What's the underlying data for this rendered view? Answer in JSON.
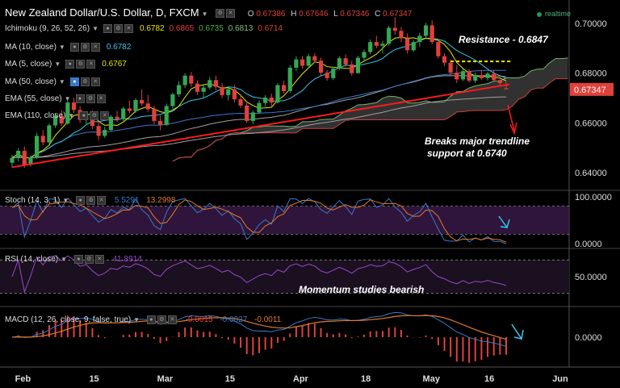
{
  "header": {
    "title": "New Zealand Dollar/U.S. Dollar, D, FXCM",
    "o_label": "O",
    "o": "0.67386",
    "h_label": "H",
    "h": "0.67646",
    "l_label": "L",
    "l": "0.67346",
    "c_label": "C",
    "c": "0.67347",
    "realtime": "realtime"
  },
  "indicators": [
    {
      "label": "Ichimoku (9, 26, 52, 26)",
      "values": [
        "0.6782",
        "0.6865",
        "0.6735",
        "0.6813",
        "0.6714"
      ],
      "colors": [
        "#e6e600",
        "#e0413c",
        "#4caf50",
        "#7fbf7f",
        "#e0413c"
      ]
    },
    {
      "label": "MA (10, close)",
      "values": [
        "0.6782"
      ],
      "colors": [
        "#38c6e8"
      ]
    },
    {
      "label": "MA (5, close)",
      "values": [
        "0.6767"
      ],
      "colors": [
        "#e6e600"
      ]
    },
    {
      "label": "MA (50, close)",
      "values": [],
      "colors": []
    },
    {
      "label": "EMA (55, close)",
      "values": [],
      "colors": []
    },
    {
      "label": "EMA (110, close)",
      "values": [],
      "colors": []
    }
  ],
  "panels": {
    "stoch": {
      "label": "Stoch (14, 3, 1)",
      "values": [
        "5.5291",
        "13.2998"
      ],
      "colors": [
        "#3a78c9",
        "#e07a28"
      ],
      "ticks": [
        "100.0000",
        "0.0000"
      ]
    },
    "rsi": {
      "label": "RSI (14, close)",
      "values": [
        "41.8914"
      ],
      "colors": [
        "#9b48c9"
      ],
      "ticks": [
        "50.0000"
      ]
    },
    "macd": {
      "label": "MACD (12, 26, close, 9, false, true)",
      "values": [
        "-0.0015",
        "-0.0027",
        "-0.0011"
      ],
      "colors": [
        "#e0413c",
        "#3a78c9",
        "#e07a28"
      ],
      "ticks": [
        "0.0000"
      ]
    }
  },
  "annotations": {
    "resistance": "Resistance - 0.6847",
    "breaks_line1": "Breaks major trendline",
    "breaks_line2": "support at 0.6740",
    "momentum": "Momentum studies bearish"
  },
  "chart_data": {
    "type": "candlestick",
    "price_axis": {
      "ticks": [
        "0.70000",
        "0.68000",
        "0.66000",
        "0.64000"
      ],
      "ylim": [
        0.6355,
        0.7055
      ],
      "last_price": "0.67347"
    },
    "x_labels": [
      "Feb",
      "15",
      "Mar",
      "15",
      "Apr",
      "18",
      "May",
      "16",
      "Jun"
    ],
    "resistance_level": 0.6847,
    "trendline": {
      "from": [
        0,
        0.6422
      ],
      "to": [
        80,
        0.6755
      ]
    },
    "candles": [
      [
        0.644,
        0.6472,
        0.642,
        0.646
      ],
      [
        0.646,
        0.6498,
        0.6445,
        0.6488
      ],
      [
        0.6488,
        0.6505,
        0.642,
        0.6432
      ],
      [
        0.6432,
        0.647,
        0.6425,
        0.6462
      ],
      [
        0.6462,
        0.656,
        0.6455,
        0.6548
      ],
      [
        0.6548,
        0.6572,
        0.651,
        0.6522
      ],
      [
        0.6522,
        0.6598,
        0.6515,
        0.659
      ],
      [
        0.659,
        0.664,
        0.658,
        0.6628
      ],
      [
        0.6628,
        0.6652,
        0.6588,
        0.6598
      ],
      [
        0.6598,
        0.669,
        0.6592,
        0.6682
      ],
      [
        0.6682,
        0.67,
        0.664,
        0.6652
      ],
      [
        0.6652,
        0.6668,
        0.66,
        0.6612
      ],
      [
        0.6612,
        0.6645,
        0.659,
        0.6632
      ],
      [
        0.6632,
        0.665,
        0.6575,
        0.6588
      ],
      [
        0.6588,
        0.6612,
        0.653,
        0.6548
      ],
      [
        0.6548,
        0.6585,
        0.654,
        0.6572
      ],
      [
        0.6572,
        0.6632,
        0.6565,
        0.6625
      ],
      [
        0.6625,
        0.6648,
        0.6605,
        0.6615
      ],
      [
        0.6615,
        0.6665,
        0.6608,
        0.6658
      ],
      [
        0.6658,
        0.669,
        0.6638,
        0.6648
      ],
      [
        0.6648,
        0.67,
        0.664,
        0.6692
      ],
      [
        0.6692,
        0.6735,
        0.6668,
        0.6678
      ],
      [
        0.6678,
        0.6712,
        0.6645,
        0.6655
      ],
      [
        0.6655,
        0.6668,
        0.6595,
        0.6608
      ],
      [
        0.6608,
        0.663,
        0.657,
        0.6592
      ],
      [
        0.6592,
        0.6678,
        0.6588,
        0.6668
      ],
      [
        0.6668,
        0.6722,
        0.6658,
        0.6715
      ],
      [
        0.6715,
        0.6768,
        0.6705,
        0.6752
      ],
      [
        0.6752,
        0.68,
        0.674,
        0.679
      ],
      [
        0.679,
        0.6805,
        0.6745,
        0.6758
      ],
      [
        0.6758,
        0.6772,
        0.6712,
        0.6725
      ],
      [
        0.6725,
        0.6752,
        0.6698,
        0.6742
      ],
      [
        0.6742,
        0.6785,
        0.6735,
        0.6772
      ],
      [
        0.6772,
        0.679,
        0.6732,
        0.6745
      ],
      [
        0.6745,
        0.676,
        0.67,
        0.6712
      ],
      [
        0.6712,
        0.6742,
        0.669,
        0.6735
      ],
      [
        0.6735,
        0.6752,
        0.6682,
        0.6695
      ],
      [
        0.6695,
        0.6712,
        0.666,
        0.667
      ],
      [
        0.667,
        0.669,
        0.66,
        0.6608
      ],
      [
        0.6608,
        0.665,
        0.6595,
        0.6642
      ],
      [
        0.6642,
        0.669,
        0.6635,
        0.668
      ],
      [
        0.668,
        0.6712,
        0.6665,
        0.6702
      ],
      [
        0.6702,
        0.6718,
        0.6668,
        0.6682
      ],
      [
        0.6682,
        0.676,
        0.6678,
        0.6752
      ],
      [
        0.6752,
        0.677,
        0.6718,
        0.6728
      ],
      [
        0.6728,
        0.6832,
        0.6722,
        0.6822
      ],
      [
        0.6822,
        0.6868,
        0.6808,
        0.6855
      ],
      [
        0.6855,
        0.687,
        0.6818,
        0.683
      ],
      [
        0.683,
        0.6878,
        0.6826,
        0.6868
      ],
      [
        0.6868,
        0.688,
        0.6842,
        0.685
      ],
      [
        0.685,
        0.6862,
        0.679,
        0.6802
      ],
      [
        0.6802,
        0.6812,
        0.677,
        0.678
      ],
      [
        0.678,
        0.6825,
        0.6772,
        0.6818
      ],
      [
        0.6818,
        0.6868,
        0.6812,
        0.686
      ],
      [
        0.686,
        0.6875,
        0.6826,
        0.6835
      ],
      [
        0.6835,
        0.685,
        0.679,
        0.68
      ],
      [
        0.68,
        0.687,
        0.6798,
        0.6862
      ],
      [
        0.6862,
        0.6895,
        0.6848,
        0.6885
      ],
      [
        0.6885,
        0.6935,
        0.6875,
        0.6925
      ],
      [
        0.6925,
        0.695,
        0.69,
        0.691
      ],
      [
        0.691,
        0.693,
        0.6878,
        0.6918
      ],
      [
        0.6918,
        0.699,
        0.691,
        0.6982
      ],
      [
        0.6982,
        0.7025,
        0.6955,
        0.697
      ],
      [
        0.697,
        0.6985,
        0.6925,
        0.694
      ],
      [
        0.694,
        0.696,
        0.6878,
        0.6892
      ],
      [
        0.6892,
        0.6935,
        0.6885,
        0.6925
      ],
      [
        0.6925,
        0.6962,
        0.6905,
        0.695
      ],
      [
        0.695,
        0.7002,
        0.694,
        0.6992
      ],
      [
        0.6992,
        0.7012,
        0.6915,
        0.6925
      ],
      [
        0.6925,
        0.694,
        0.6858,
        0.6868
      ],
      [
        0.6868,
        0.688,
        0.6828,
        0.6842
      ],
      [
        0.6842,
        0.6855,
        0.679,
        0.6802
      ],
      [
        0.6802,
        0.6832,
        0.676,
        0.6775
      ],
      [
        0.6775,
        0.6818,
        0.6768,
        0.6808
      ],
      [
        0.6808,
        0.6815,
        0.6762,
        0.677
      ],
      [
        0.677,
        0.6802,
        0.676,
        0.6792
      ],
      [
        0.6792,
        0.681,
        0.6772,
        0.678
      ],
      [
        0.678,
        0.6805,
        0.677,
        0.6798
      ],
      [
        0.6798,
        0.6812,
        0.6765,
        0.6772
      ],
      [
        0.6772,
        0.6792,
        0.6748,
        0.676
      ],
      [
        0.6739,
        0.6765,
        0.6735,
        0.6735
      ]
    ]
  }
}
